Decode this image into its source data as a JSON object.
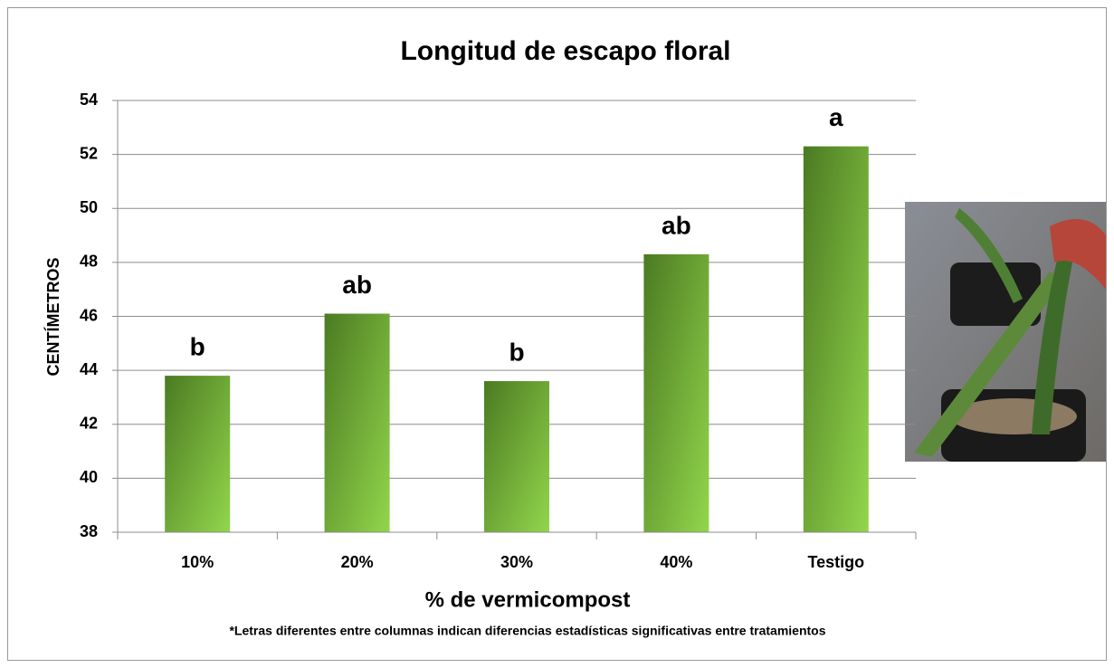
{
  "chart_data": {
    "type": "bar",
    "title": "Longitud de escapo floral",
    "x_label": "% de vermicompost",
    "y_label": "CENTÍMETROS",
    "note": "*Letras diferentes entre columnas indican diferencias estadísticas significativas entre tratamientos",
    "categories": [
      "10%",
      "20%",
      "30%",
      "40%",
      "Testigo"
    ],
    "values": [
      43.8,
      46.1,
      43.6,
      48.3,
      52.3
    ],
    "annotations": [
      "b",
      "ab",
      "b",
      "ab",
      "a"
    ],
    "gradient": [
      "#4b7a22",
      "#92d64c"
    ],
    "ylim": [
      38,
      54
    ],
    "yticks": [
      38,
      40,
      42,
      44,
      46,
      48,
      50,
      52,
      54
    ],
    "grid": true
  }
}
